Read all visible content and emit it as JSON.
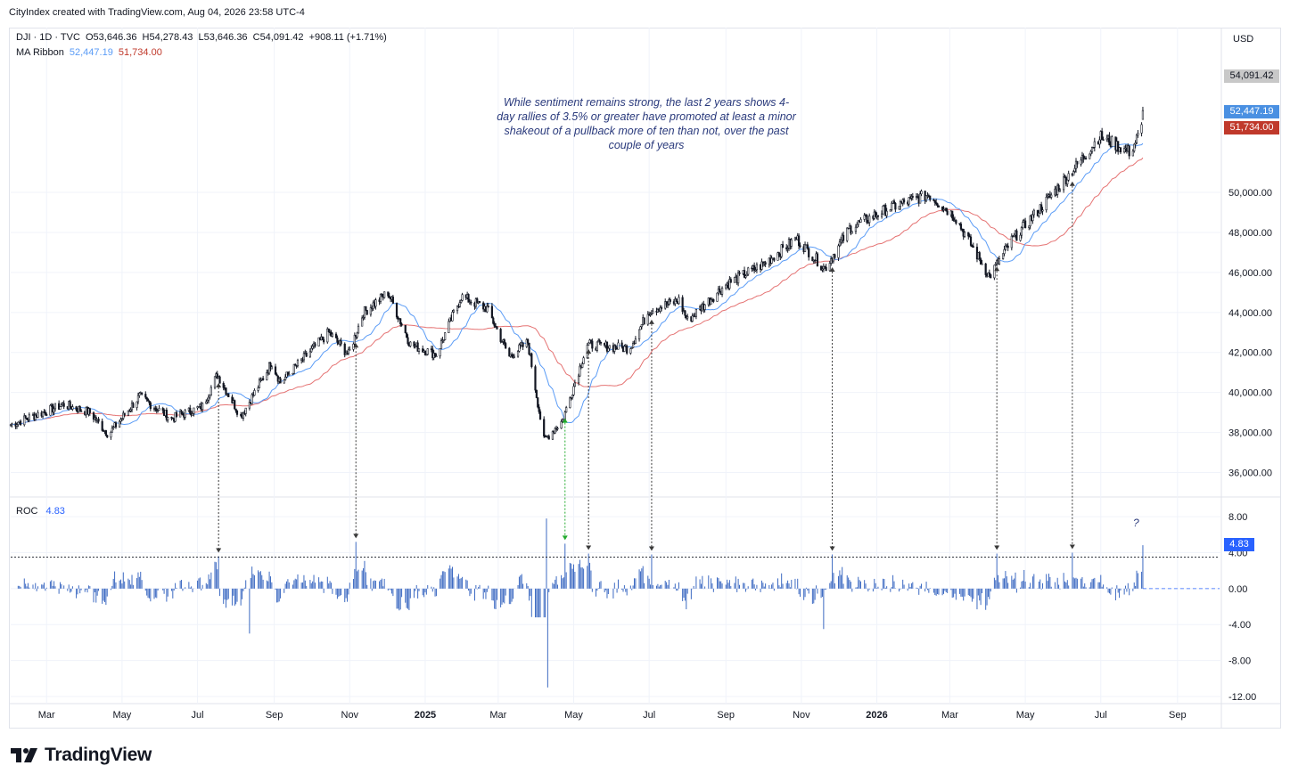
{
  "header": {
    "title": "CityIndex created with TradingView.com, Aug 04, 2026 23:58 UTC-4"
  },
  "legend": {
    "main": {
      "symbol": "DJI · 1D · TVC",
      "open": "O53,646.36",
      "high": "H54,278.43",
      "low": "L53,646.36",
      "close": "C54,091.42",
      "change": "+908.11 (+1.71%)"
    },
    "ribbon": {
      "label": "MA Ribbon",
      "fast": "52,447.19",
      "slow": "51,734.00"
    },
    "roc": {
      "label": "ROC",
      "value": "4.83"
    }
  },
  "currency": "USD",
  "annotation": "While sentiment remains strong, the last 2 years shows 4-day rallies of 3.5% or greater have promoted at least a minor shakeout of a pullback more of ten than not, over the past couple of years",
  "question_mark": "?",
  "price_tags": {
    "last": "54,091.42",
    "fast_ma": "52,447.19",
    "slow_ma": "51,734.00",
    "roc": "4.83"
  },
  "colors": {
    "candle": "#131722",
    "fast_ma": "#5b9cf6",
    "slow_ma": "#e57373",
    "roc_bar": "#3d6ac2",
    "arrow": "#3a3a3a",
    "arrow_green": "#22ab2d",
    "grid": "#f0f3fa",
    "text": "#131722",
    "tag_last": "#c8c8c8",
    "tag_fast": "#4a90e2",
    "tag_slow": "#c0392b",
    "tag_roc": "#2962ff"
  },
  "footer": {
    "brand": "TradingView"
  },
  "chart_data": [
    {
      "type": "candlestick",
      "title": "DJI · 1D · TVC",
      "ylim": [
        35000,
        56500
      ],
      "yticks": [
        "36,000.00",
        "38,000.00",
        "40,000.00",
        "42,000.00",
        "44,000.00",
        "46,000.00",
        "48,000.00",
        "50,000.00"
      ],
      "ytick_values": [
        36000,
        38000,
        40000,
        42000,
        44000,
        46000,
        48000,
        50000
      ],
      "xticks": [
        "Mar",
        "May",
        "Jul",
        "Sep",
        "Nov",
        "2025",
        "Mar",
        "May",
        "Jul",
        "Sep",
        "Nov",
        "2026",
        "Mar",
        "May",
        "Jul",
        "Sep"
      ],
      "xtick_dates": [
        "2024-03-01",
        "2024-05-01",
        "2024-07-01",
        "2024-09-01",
        "2024-11-01",
        "2025-01-01",
        "2025-03-01",
        "2025-05-01",
        "2025-07-01",
        "2025-09-01",
        "2025-11-01",
        "2026-01-01",
        "2026-03-01",
        "2026-05-01",
        "2026-07-01",
        "2026-09-01"
      ],
      "xlim": [
        "2024-02-01",
        "2026-10-05"
      ],
      "price_path": [
        {
          "date": "2024-02-01",
          "close": 38400
        },
        {
          "date": "2024-03-15",
          "close": 39400
        },
        {
          "date": "2024-04-05",
          "close": 39000
        },
        {
          "date": "2024-04-20",
          "close": 37900
        },
        {
          "date": "2024-05-15",
          "close": 39800
        },
        {
          "date": "2024-06-10",
          "close": 38700
        },
        {
          "date": "2024-07-05",
          "close": 39300
        },
        {
          "date": "2024-07-17",
          "close": 40900
        },
        {
          "date": "2024-08-05",
          "close": 38800
        },
        {
          "date": "2024-08-30",
          "close": 41500
        },
        {
          "date": "2024-09-06",
          "close": 40500
        },
        {
          "date": "2024-10-15",
          "close": 43000
        },
        {
          "date": "2024-10-31",
          "close": 41900
        },
        {
          "date": "2024-11-12",
          "close": 44000
        },
        {
          "date": "2024-12-02",
          "close": 45000
        },
        {
          "date": "2024-12-20",
          "close": 42400
        },
        {
          "date": "2025-01-10",
          "close": 41900
        },
        {
          "date": "2025-01-30",
          "close": 44800
        },
        {
          "date": "2025-02-20",
          "close": 44200
        },
        {
          "date": "2025-03-10",
          "close": 41800
        },
        {
          "date": "2025-03-25",
          "close": 42500
        },
        {
          "date": "2025-04-07",
          "close": 37600
        },
        {
          "date": "2025-04-22",
          "close": 38600
        },
        {
          "date": "2025-05-12",
          "close": 42400
        },
        {
          "date": "2025-06-15",
          "close": 42200
        },
        {
          "date": "2025-07-01",
          "close": 44100
        },
        {
          "date": "2025-07-25",
          "close": 44600
        },
        {
          "date": "2025-08-01",
          "close": 43600
        },
        {
          "date": "2025-09-01",
          "close": 45400
        },
        {
          "date": "2025-10-01",
          "close": 46400
        },
        {
          "date": "2025-10-28",
          "close": 47700
        },
        {
          "date": "2025-11-20",
          "close": 46200
        },
        {
          "date": "2025-12-10",
          "close": 48200
        },
        {
          "date": "2026-01-10",
          "close": 49200
        },
        {
          "date": "2026-02-12",
          "close": 49900
        },
        {
          "date": "2026-03-05",
          "close": 48800
        },
        {
          "date": "2026-04-02",
          "close": 45800
        },
        {
          "date": "2026-04-20",
          "close": 47600
        },
        {
          "date": "2026-05-20",
          "close": 49700
        },
        {
          "date": "2026-06-15",
          "close": 51600
        },
        {
          "date": "2026-06-30",
          "close": 52800
        },
        {
          "date": "2026-07-25",
          "close": 52000
        },
        {
          "date": "2026-08-03",
          "close": 53200
        },
        {
          "date": "2026-08-04",
          "close": 54091.42
        }
      ],
      "last": {
        "open": 53646.36,
        "high": 54278.43,
        "low": 53646.36,
        "close": 54091.42,
        "change": 908.11,
        "change_pct": 1.71
      },
      "series": [
        {
          "name": "MA Ribbon",
          "last": 52447.19
        },
        {
          "name": "MA Ribbon",
          "last": 51734.0
        }
      ]
    },
    {
      "type": "bar",
      "title": "ROC",
      "ylim": [
        -12.5,
        9.5
      ],
      "yticks": [
        "8.00",
        "4.00",
        "0.00",
        "-4.00",
        "-8.00",
        "-12.00"
      ],
      "ytick_values": [
        8,
        4,
        0,
        -4,
        -8,
        -12
      ],
      "threshold": 3.5,
      "last": 4.83,
      "spikes": [
        {
          "date": "2024-07-18",
          "value": 3.6
        },
        {
          "date": "2024-08-12",
          "value": -5.0
        },
        {
          "date": "2024-11-06",
          "value": 5.2
        },
        {
          "date": "2025-04-09",
          "value": 7.8
        },
        {
          "date": "2025-04-10",
          "value": -11.0
        },
        {
          "date": "2025-04-24",
          "value": 5.0
        },
        {
          "date": "2025-05-13",
          "value": 3.9
        },
        {
          "date": "2025-07-03",
          "value": 3.8
        },
        {
          "date": "2025-11-26",
          "value": 3.8
        },
        {
          "date": "2025-11-19",
          "value": -4.5
        },
        {
          "date": "2026-04-08",
          "value": 3.9
        },
        {
          "date": "2026-06-08",
          "value": 4.0
        },
        {
          "date": "2026-08-04",
          "value": 4.83
        }
      ]
    }
  ],
  "arrows": [
    {
      "date": "2024-07-18",
      "color": "dark"
    },
    {
      "date": "2024-11-06",
      "color": "dark"
    },
    {
      "date": "2025-04-24",
      "color": "green"
    },
    {
      "date": "2025-05-13",
      "color": "dark"
    },
    {
      "date": "2025-07-03",
      "color": "dark"
    },
    {
      "date": "2025-11-26",
      "color": "dark"
    },
    {
      "date": "2026-04-08",
      "color": "dark"
    },
    {
      "date": "2026-06-08",
      "color": "dark"
    }
  ]
}
